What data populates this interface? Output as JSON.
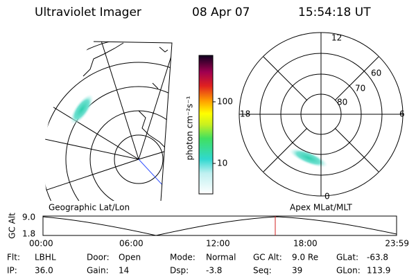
{
  "header": {
    "instrument": "Ultraviolet Imager",
    "date": "08 Apr 07",
    "time": "15:54:18 UT"
  },
  "geo_map": {
    "label": "Geographic Lat/Lon"
  },
  "colorbar": {
    "label": "photon cm⁻²s⁻¹",
    "ticks": [
      "100",
      "10"
    ]
  },
  "polar_map": {
    "label": "Apex MLat/MLT",
    "mlt_labels": [
      "12",
      "18",
      "6",
      "0"
    ],
    "lat_labels": [
      "80",
      "70",
      "60"
    ]
  },
  "altitude_plot": {
    "ylabel": "GC Alt",
    "yticks": [
      "9.0",
      "1.8"
    ],
    "xticks": [
      "00:00",
      "06:00",
      "12:00",
      "18:00",
      "23:59"
    ]
  },
  "info": {
    "rows": [
      [
        {
          "label": "Flt:",
          "value": "LBHL"
        },
        {
          "label": "Door:",
          "value": "Open"
        },
        {
          "label": "Mode:",
          "value": "Normal"
        },
        {
          "label": "GC Alt:",
          "value": "9.0 Re"
        },
        {
          "label": "GLat:",
          "value": "-63.8"
        }
      ],
      [
        {
          "label": "IP:",
          "value": "36.0"
        },
        {
          "label": "Gain:",
          "value": "14"
        },
        {
          "label": "Dsp:",
          "value": "-3.8"
        },
        {
          "label": "Seq:",
          "value": "39"
        },
        {
          "label": "GLon:",
          "value": "113.9"
        }
      ]
    ]
  }
}
